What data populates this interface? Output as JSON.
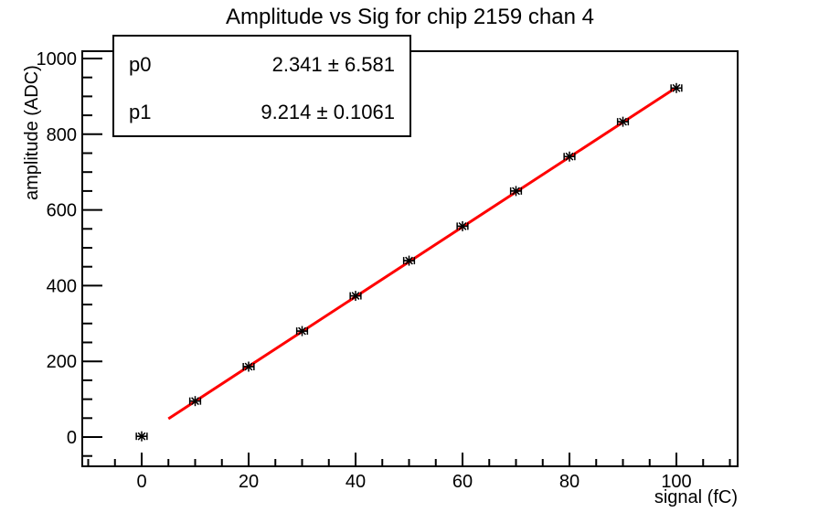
{
  "title": "Amplitude vs Sig for chip 2159 chan 4",
  "stats_box": {
    "rows": [
      {
        "name": "p0",
        "value": "2.341 ± 6.581"
      },
      {
        "name": "p1",
        "value": "9.214 ± 0.1061"
      }
    ]
  },
  "chart_data": {
    "type": "scatter",
    "title": "Amplitude vs Sig for chip 2159 chan 4",
    "xlabel": "signal (fC)",
    "ylabel": "amplitude (ADC)",
    "x": [
      0,
      10,
      20,
      30,
      40,
      50,
      60,
      70,
      80,
      90,
      100
    ],
    "y": [
      2,
      95,
      186,
      280,
      373,
      466,
      557,
      650,
      741,
      833,
      922
    ],
    "x_err": [
      1,
      1,
      1,
      1,
      1,
      1,
      1,
      1,
      1,
      1,
      1
    ],
    "marker": "asterisk",
    "marker_color": "#000000",
    "xlim": [
      -11,
      111.5
    ],
    "ylim": [
      -77,
      1019
    ],
    "x_major_ticks": [
      0,
      20,
      40,
      60,
      80,
      100
    ],
    "x_minor_step": 5,
    "y_major_ticks": [
      0,
      200,
      400,
      600,
      800,
      1000
    ],
    "y_minor_step": 50,
    "grid": false,
    "legend": "none",
    "fit": {
      "shape": "linear",
      "p0": 2.341,
      "p0_err": 6.581,
      "p1": 9.214,
      "p1_err": 0.1061,
      "x_start": 5,
      "x_end": 100,
      "color": "#ff0000"
    }
  }
}
